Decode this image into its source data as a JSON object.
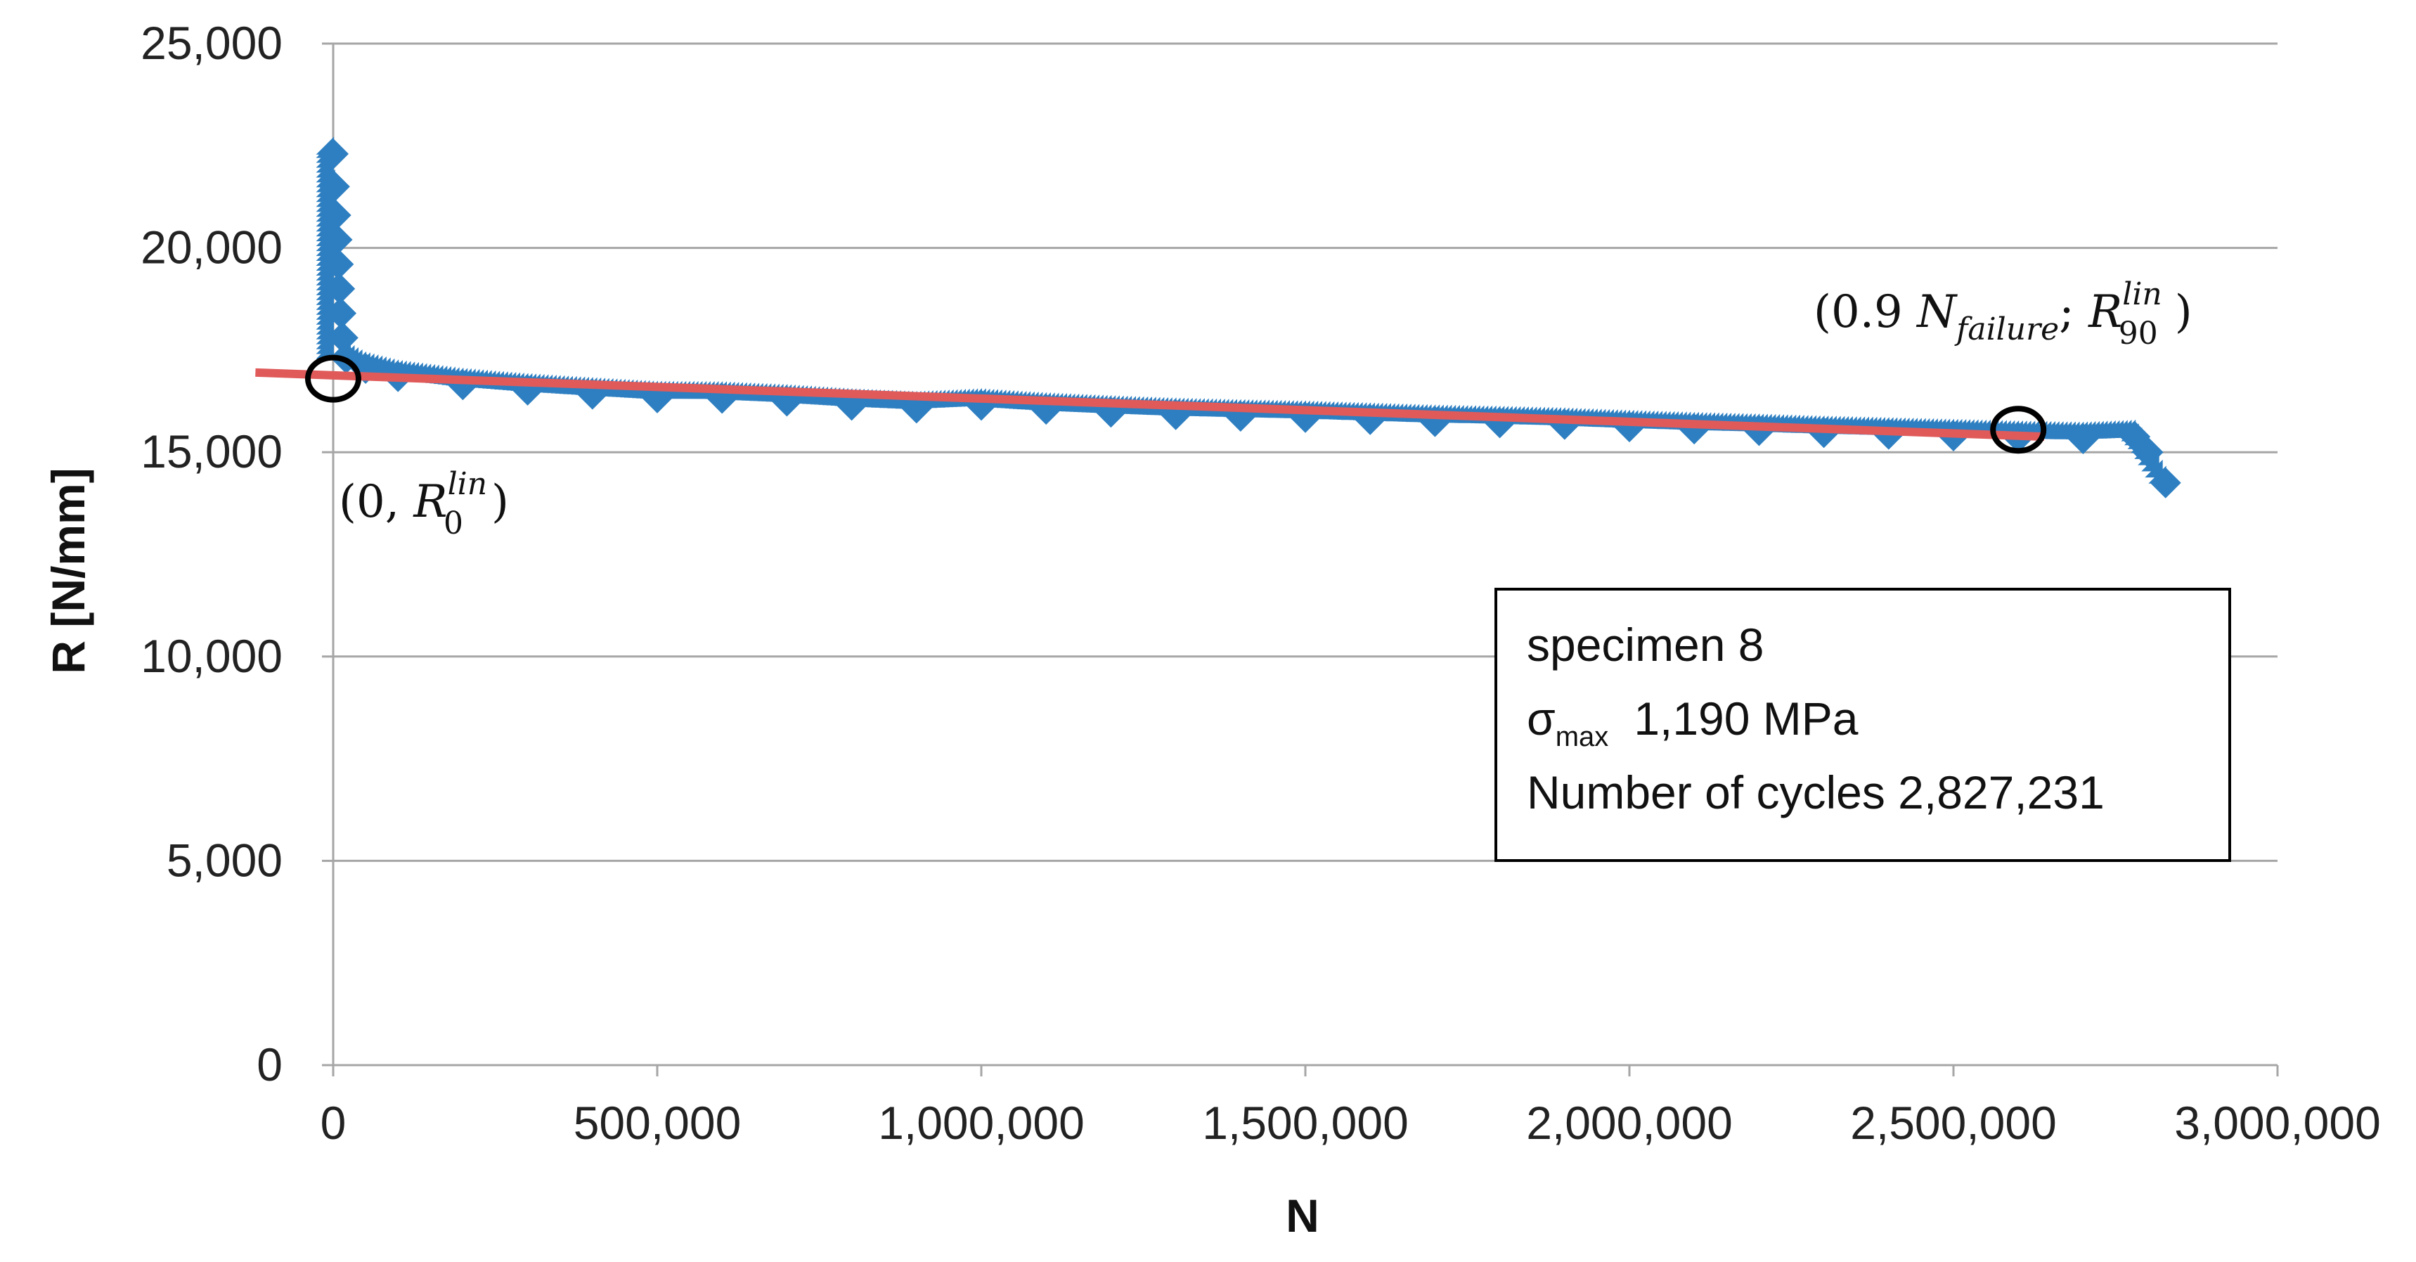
{
  "chart_data": {
    "type": "scatter",
    "xlabel": "N",
    "ylabel": "R [N/mm]",
    "xlim": [
      0,
      3000000
    ],
    "ylim": [
      0,
      25000
    ],
    "x_ticks": [
      "0",
      "500,000",
      "1,000,000",
      "1,500,000",
      "2,000,000",
      "2,500,000",
      "3,000,000"
    ],
    "y_ticks": [
      "0",
      "5,000",
      "10,000",
      "15,000",
      "20,000",
      "25,000"
    ],
    "grid": "horizontal",
    "series": [
      {
        "color": "#2E7FC1",
        "marker": "diamond",
        "points": [
          [
            0,
            22300
          ],
          [
            2000,
            21500
          ],
          [
            4000,
            20800
          ],
          [
            6000,
            20200
          ],
          [
            8000,
            19600
          ],
          [
            10000,
            19000
          ],
          [
            12000,
            18400
          ],
          [
            15000,
            17800
          ],
          [
            20000,
            17300
          ],
          [
            50000,
            17050
          ],
          [
            100000,
            16850
          ],
          [
            200000,
            16650
          ],
          [
            300000,
            16520
          ],
          [
            400000,
            16420
          ],
          [
            500000,
            16330
          ],
          [
            600000,
            16320
          ],
          [
            700000,
            16250
          ],
          [
            800000,
            16150
          ],
          [
            900000,
            16080
          ],
          [
            1000000,
            16150
          ],
          [
            1100000,
            16050
          ],
          [
            1200000,
            15980
          ],
          [
            1300000,
            15920
          ],
          [
            1400000,
            15880
          ],
          [
            1500000,
            15850
          ],
          [
            1600000,
            15800
          ],
          [
            1700000,
            15750
          ],
          [
            1800000,
            15720
          ],
          [
            1900000,
            15680
          ],
          [
            2000000,
            15620
          ],
          [
            2100000,
            15570
          ],
          [
            2200000,
            15530
          ],
          [
            2300000,
            15480
          ],
          [
            2400000,
            15440
          ],
          [
            2500000,
            15400
          ],
          [
            2600000,
            15360
          ],
          [
            2700000,
            15330
          ],
          [
            2780000,
            15380
          ],
          [
            2800000,
            15000
          ],
          [
            2827231,
            14250
          ]
        ]
      },
      {
        "type": "line",
        "color": "#E05A5A",
        "points": [
          [
            -120000,
            16950
          ],
          [
            2640000,
            15380
          ]
        ]
      }
    ],
    "markers": [
      {
        "x": 0,
        "y": 16800
      },
      {
        "x": 2600000,
        "y": 15550
      }
    ],
    "annotations": {
      "r0": {
        "open": "(0, ",
        "R": "R",
        "sup": "lin",
        "sub": "0",
        "close": ")"
      },
      "r90": {
        "open": "(0.9 ",
        "N": "N",
        "nsub": "failure",
        "sep": "; ",
        "R": "R",
        "sup": "lin",
        "sub": "90",
        "close": ")"
      }
    },
    "legend_box": {
      "line1": "specimen 8",
      "sigma": "σ",
      "sigma_sub": "max",
      "sigma_value": "1,190 MPa",
      "line3": "Number of cycles 2,827,231"
    }
  }
}
